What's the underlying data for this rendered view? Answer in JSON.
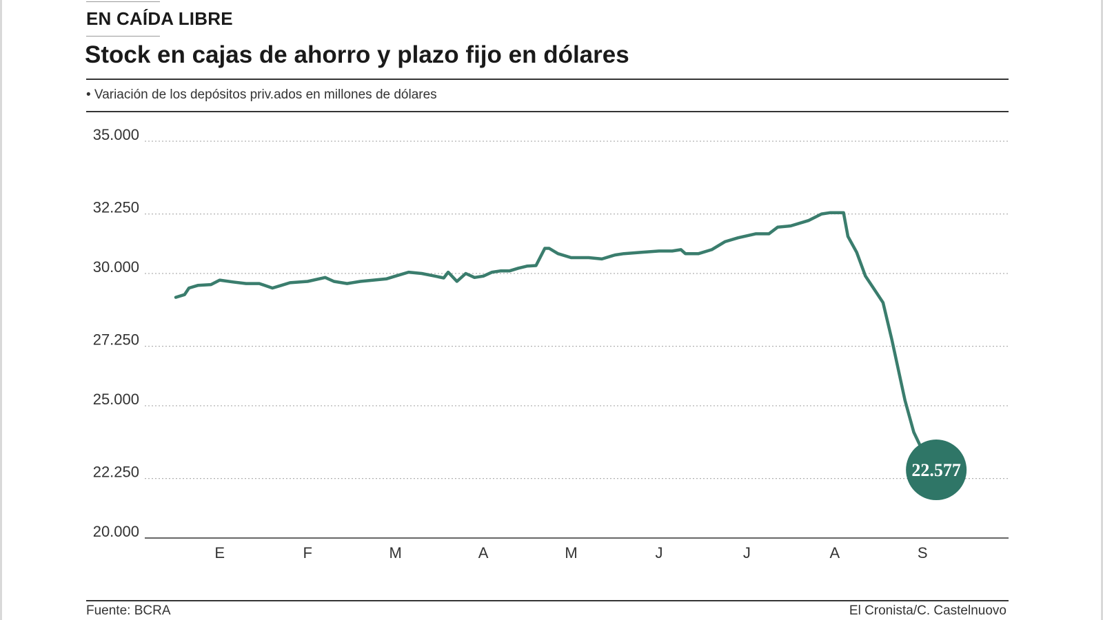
{
  "header": {
    "kicker": "EN CAÍDA LIBRE",
    "title": "Stock en cajas de ahorro y plazo fijo en dólares",
    "subtitle": "• Variación de los depósitos priv.ados en millones de dólares"
  },
  "footer": {
    "source": "Fuente: BCRA",
    "credit": "El Cronista/C. Castelnuovo"
  },
  "colors": {
    "line": "#3a7d6d",
    "end_marker": "#2f7667",
    "grid": "#b0b0b0"
  },
  "chart_data": {
    "type": "line",
    "ylim": [
      20000,
      35000
    ],
    "y_ticks": [
      35000,
      32250,
      30000,
      27250,
      25000,
      22250,
      20000
    ],
    "y_tick_labels": [
      "35.000",
      "32.250",
      "30.000",
      "27.250",
      "25.000",
      "22.250",
      "20.000"
    ],
    "x_tick_labels": [
      "E",
      "F",
      "M",
      "A",
      "M",
      "J",
      "J",
      "A",
      "S"
    ],
    "x_range": [
      0,
      9
    ],
    "x_tick_positions": [
      0.5,
      1.5,
      2.5,
      3.5,
      4.5,
      5.5,
      6.5,
      7.5,
      8.5
    ],
    "grid": "horizontal dotted",
    "end_value_label": "22.577",
    "series": [
      {
        "x": [
          0.0,
          0.1,
          0.15,
          0.25,
          0.4,
          0.5,
          0.65,
          0.8,
          0.95,
          1.1,
          1.2,
          1.3,
          1.5,
          1.7,
          1.8,
          1.95,
          2.1,
          2.25,
          2.4,
          2.5,
          2.65,
          2.8,
          2.95,
          3.05,
          3.1,
          3.2,
          3.3,
          3.4,
          3.5,
          3.6,
          3.7,
          3.8,
          3.9,
          4.0,
          4.1,
          4.2,
          4.25,
          4.35,
          4.5,
          4.7,
          4.85,
          5.0,
          5.1,
          5.3,
          5.5,
          5.65,
          5.75,
          5.8,
          5.95,
          6.1,
          6.25,
          6.4,
          6.6,
          6.75,
          6.85,
          7.0,
          7.2,
          7.35,
          7.45,
          7.55,
          7.6,
          7.65,
          7.75,
          7.85,
          7.95,
          8.05,
          8.15,
          8.3,
          8.4,
          8.5,
          8.6,
          8.7,
          8.75
        ],
        "values": [
          29100,
          29200,
          29450,
          29550,
          29580,
          29750,
          29680,
          29620,
          29620,
          29450,
          29550,
          29650,
          29700,
          29850,
          29700,
          29620,
          29700,
          29750,
          29800,
          29900,
          30050,
          30000,
          29900,
          29830,
          30050,
          29700,
          30000,
          29850,
          29900,
          30050,
          30100,
          30100,
          30200,
          30280,
          30300,
          30950,
          30950,
          30750,
          30600,
          30600,
          30550,
          30700,
          30750,
          30800,
          30850,
          30850,
          30900,
          30750,
          30750,
          30900,
          31200,
          31350,
          31500,
          31500,
          31750,
          31800,
          32000,
          32250,
          32300,
          32300,
          32300,
          31400,
          30800,
          29900,
          29400,
          28900,
          27500,
          25200,
          24000,
          23300,
          23000,
          22700,
          22577
        ]
      }
    ]
  }
}
